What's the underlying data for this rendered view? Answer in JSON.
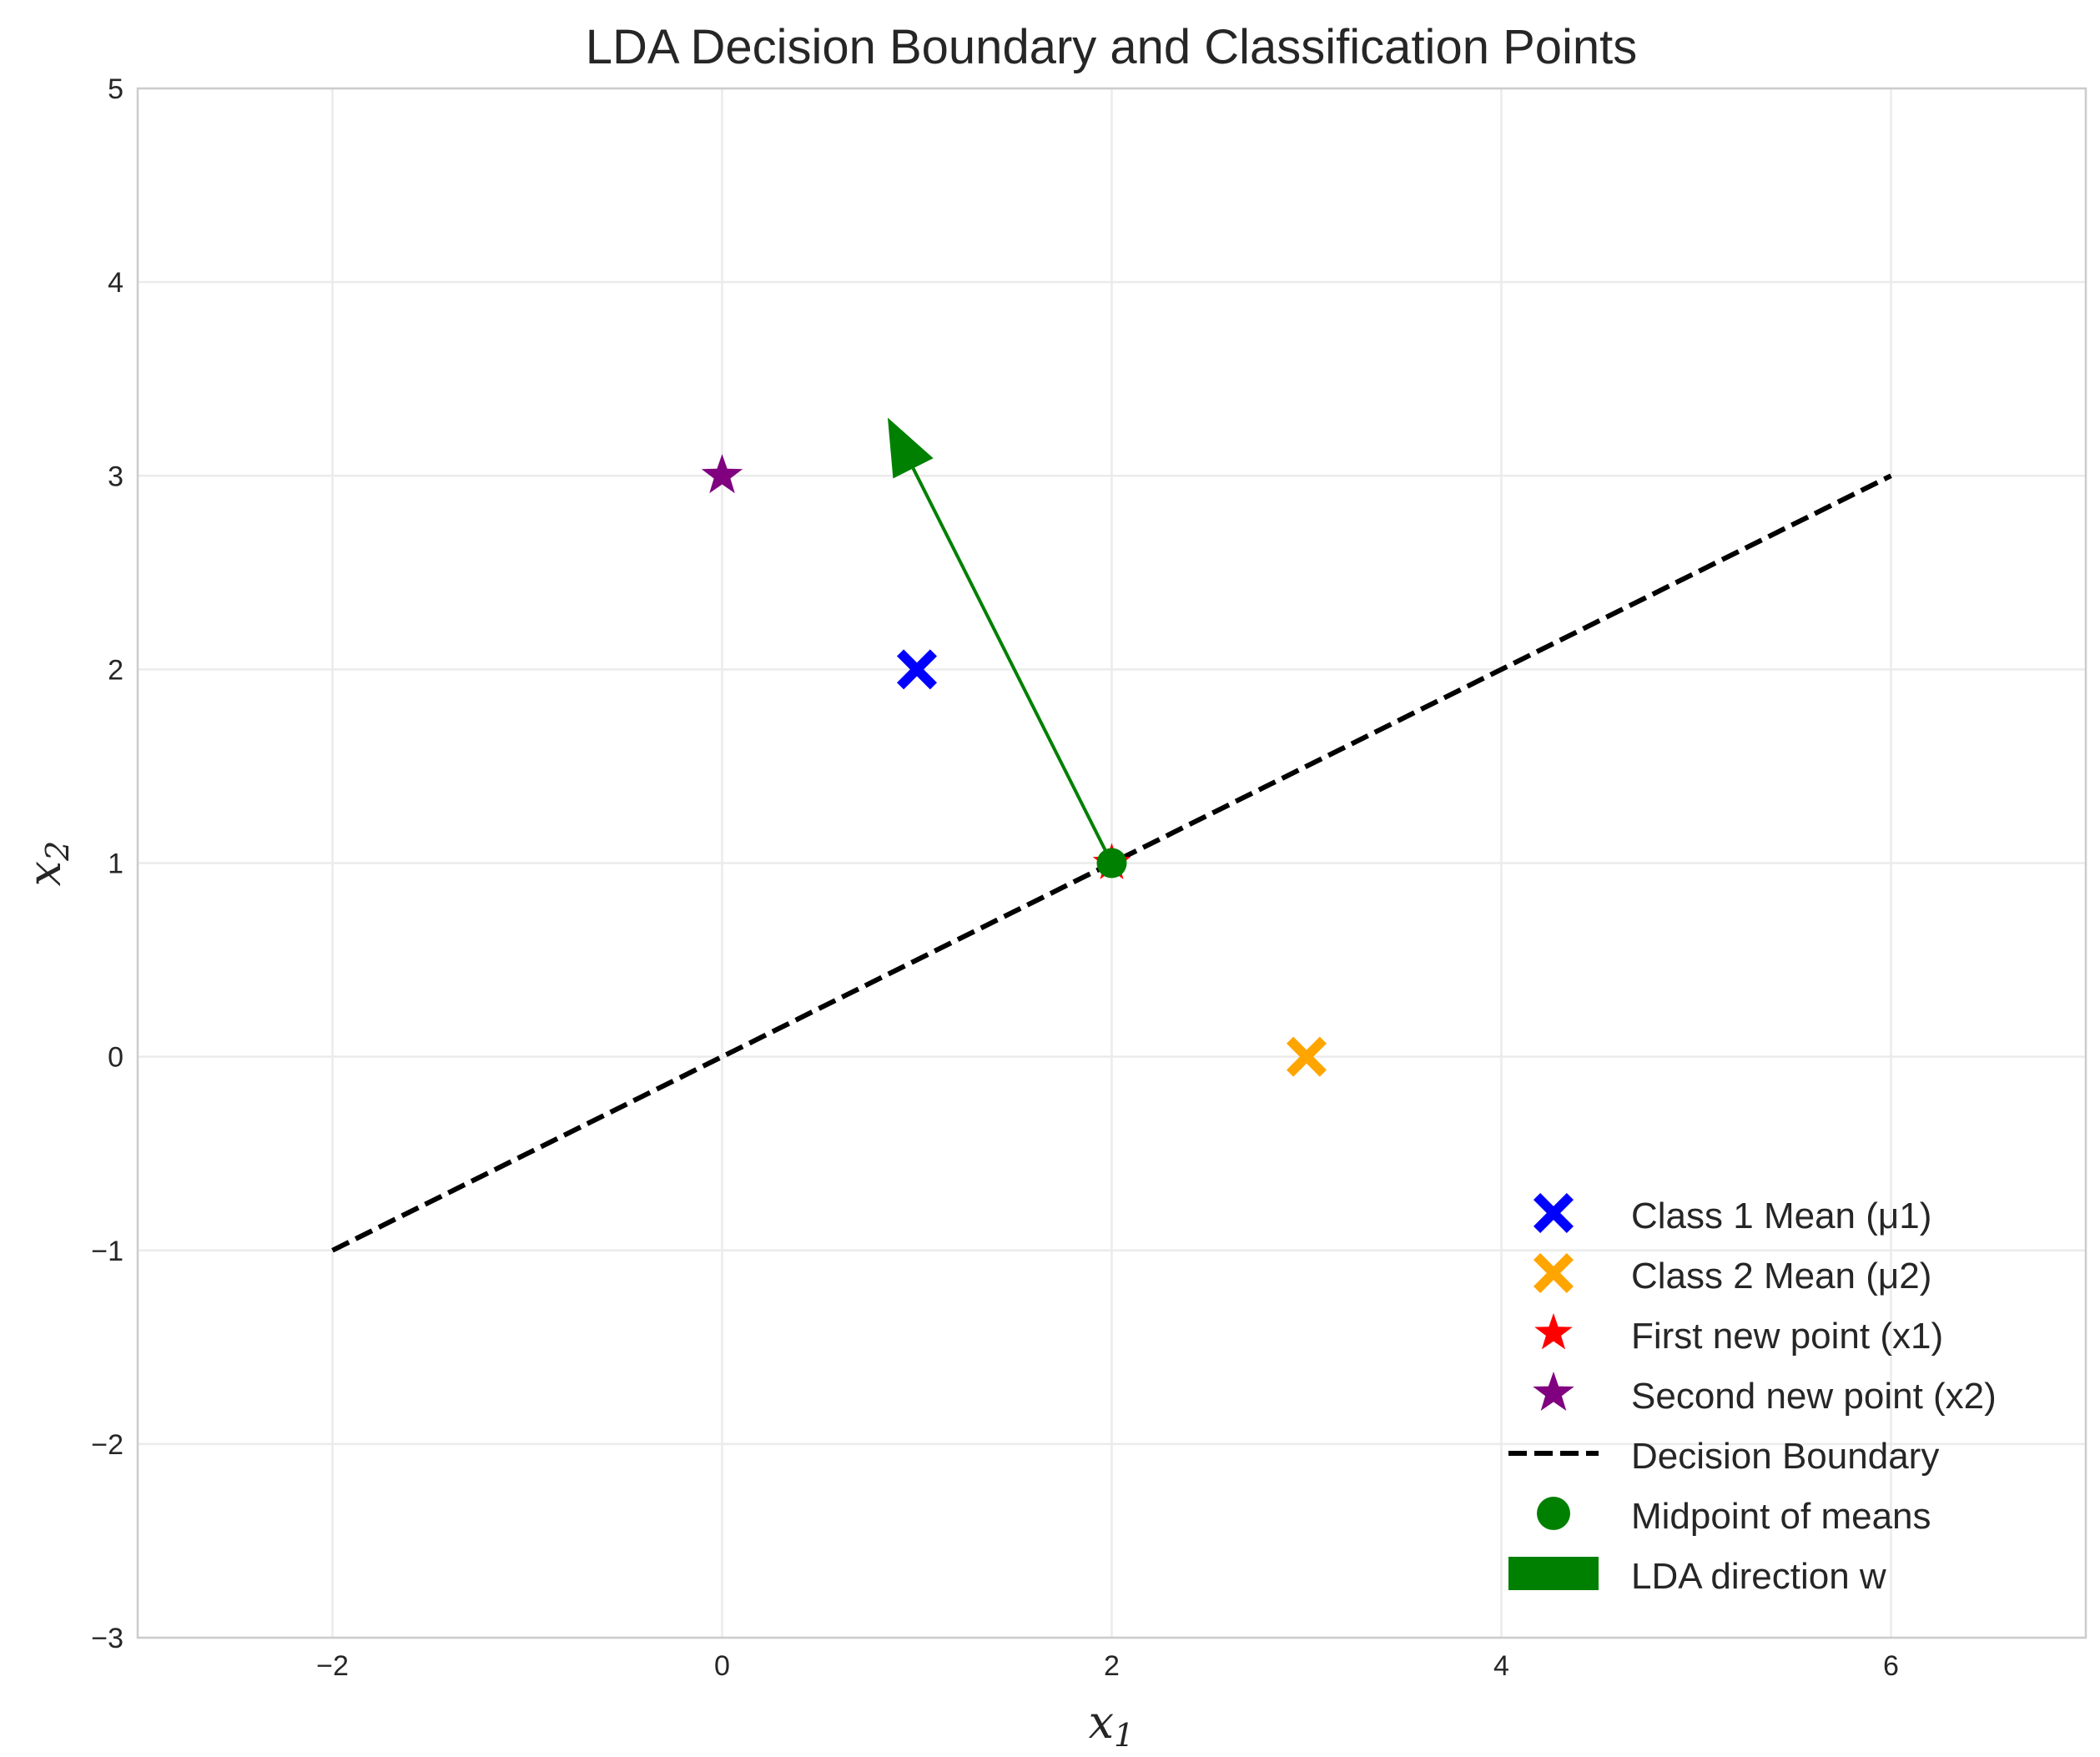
{
  "chart_data": {
    "type": "scatter",
    "title": "LDA Decision Boundary and Classification Points",
    "xlabel": "x",
    "xlabel_sub": "1",
    "ylabel": "x",
    "ylabel_sub": "2",
    "xlim": [
      -3,
      7
    ],
    "ylim": [
      -3,
      5
    ],
    "xticks": [
      -2,
      0,
      2,
      4,
      6
    ],
    "xtick_labels": [
      "−2",
      "0",
      "2",
      "4",
      "6"
    ],
    "yticks": [
      -3,
      -2,
      -1,
      0,
      1,
      2,
      3,
      4,
      5
    ],
    "ytick_labels": [
      "−3",
      "−2",
      "−1",
      "0",
      "1",
      "2",
      "3",
      "4",
      "5"
    ],
    "grid": true,
    "legend_position": "lower-right",
    "series": [
      {
        "name": "Class 1 Mean (μ1)",
        "kind": "marker",
        "marker": "X",
        "color": "#0000ff",
        "points": [
          [
            1,
            2
          ]
        ]
      },
      {
        "name": "Class 2 Mean (μ2)",
        "kind": "marker",
        "marker": "X",
        "color": "#ffa500",
        "points": [
          [
            3,
            0
          ]
        ]
      },
      {
        "name": "First new point (x1)",
        "kind": "marker",
        "marker": "star",
        "color": "#ff0000",
        "points": [
          [
            2,
            1
          ]
        ]
      },
      {
        "name": "Second new point (x2)",
        "kind": "marker",
        "marker": "star",
        "color": "#800080",
        "points": [
          [
            0,
            3
          ]
        ]
      },
      {
        "name": "Decision Boundary",
        "kind": "line",
        "style": "dashed",
        "color": "#000000",
        "x": [
          -2,
          6
        ],
        "y": [
          -1,
          3
        ]
      },
      {
        "name": "Midpoint of means",
        "kind": "marker",
        "marker": "circle",
        "color": "#008000",
        "points": [
          [
            2,
            1
          ]
        ]
      },
      {
        "name": "LDA direction w",
        "kind": "arrow",
        "color": "#008000",
        "from": [
          2,
          1
        ],
        "to": [
          0.85,
          3.3
        ]
      }
    ]
  }
}
